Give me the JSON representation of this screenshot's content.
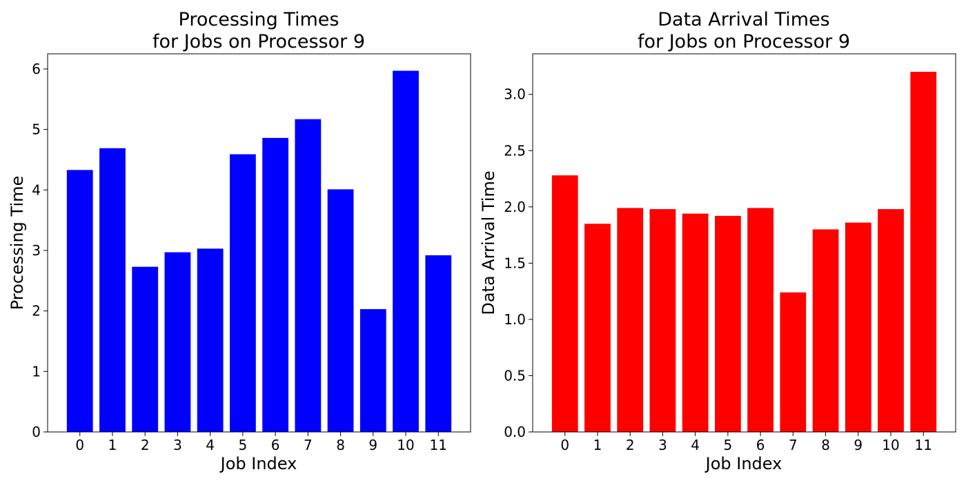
{
  "chart_data": [
    {
      "type": "bar",
      "title_lines": [
        "Processing Times",
        "for Jobs on Processor 9"
      ],
      "xlabel": "Job Index",
      "ylabel": "Processing Time",
      "categories": [
        "0",
        "1",
        "2",
        "3",
        "4",
        "5",
        "6",
        "7",
        "8",
        "9",
        "10",
        "11"
      ],
      "values": [
        4.33,
        4.69,
        2.73,
        2.97,
        3.03,
        4.59,
        4.86,
        5.17,
        4.01,
        2.03,
        5.97,
        2.92
      ],
      "ylim": [
        0,
        6.25
      ],
      "yticks": [
        0,
        1,
        2,
        3,
        4,
        5,
        6
      ],
      "ytick_labels": [
        "0",
        "1",
        "2",
        "3",
        "4",
        "5",
        "6"
      ],
      "color": "#0000ff",
      "grid": false,
      "legend": "none"
    },
    {
      "type": "bar",
      "title_lines": [
        "Data Arrival Times",
        "for Jobs on Processor 9"
      ],
      "xlabel": "Job Index",
      "ylabel": "Data Arrival Time",
      "categories": [
        "0",
        "1",
        "2",
        "3",
        "4",
        "5",
        "6",
        "7",
        "8",
        "9",
        "10",
        "11"
      ],
      "values": [
        2.28,
        1.85,
        1.99,
        1.98,
        1.94,
        1.92,
        1.99,
        1.24,
        1.8,
        1.86,
        1.98,
        3.2
      ],
      "ylim": [
        0,
        3.36
      ],
      "yticks": [
        0,
        0.5,
        1,
        1.5,
        2,
        2.5,
        3
      ],
      "ytick_labels": [
        "0.0",
        "0.5",
        "1.0",
        "1.5",
        "2.0",
        "2.5",
        "3.0"
      ],
      "color": "#ff0000",
      "grid": false,
      "legend": "none"
    }
  ]
}
